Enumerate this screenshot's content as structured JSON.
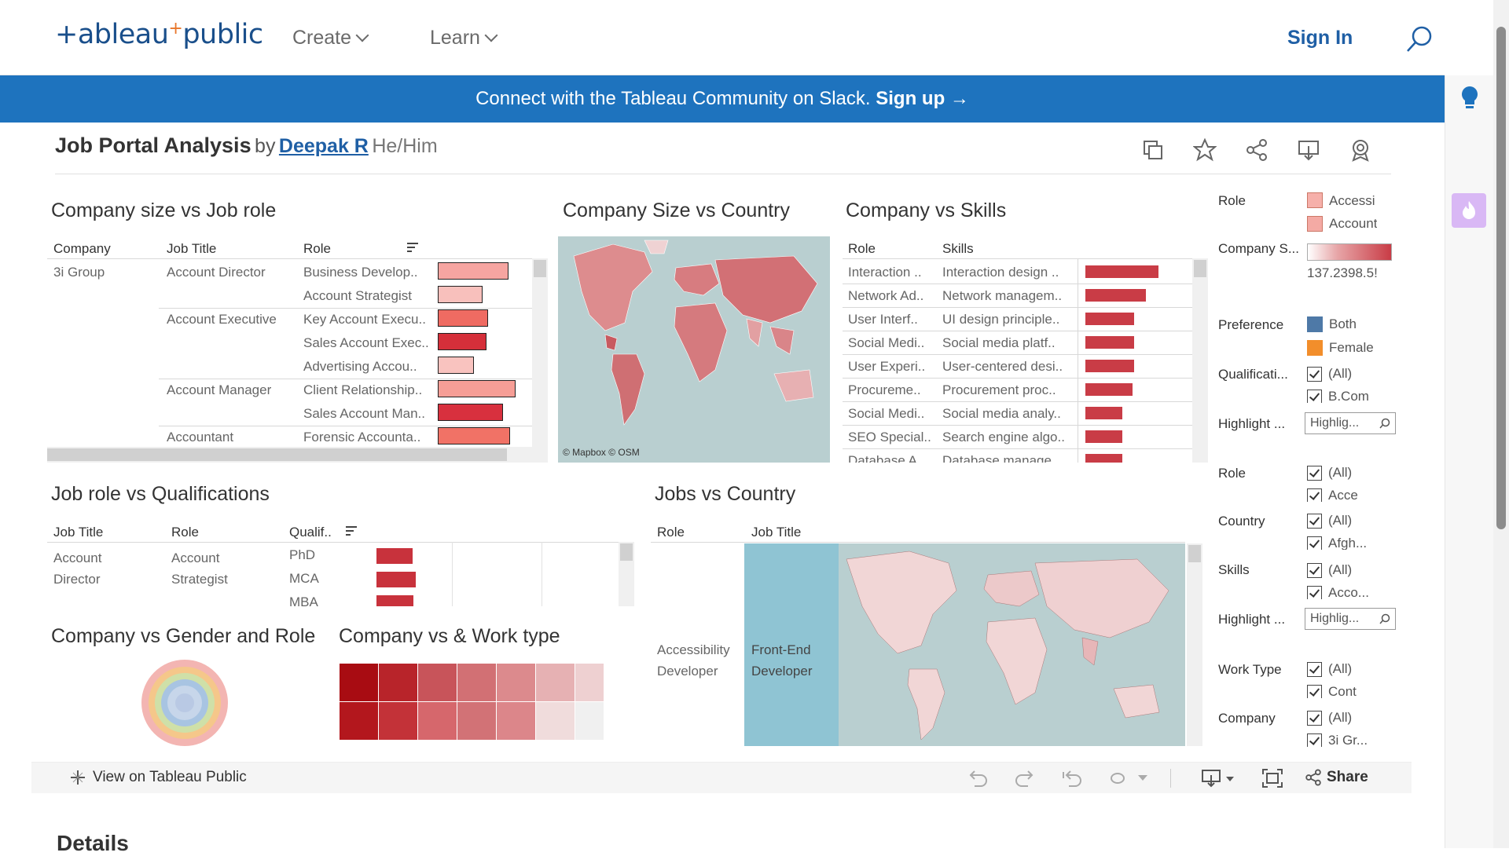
{
  "nav": {
    "logo": "+ableau",
    "logo_plus": "+",
    "logo_public": "public",
    "create": "Create",
    "learn": "Learn",
    "signin": "Sign In"
  },
  "banner": {
    "text": "Connect with the Tableau Community on Slack.",
    "cta": "Sign up →"
  },
  "viz": {
    "title": "Job Portal Analysis",
    "by": "by",
    "author": "Deepak R",
    "pronoun": "He/Him"
  },
  "sheet1": {
    "title": "Company size vs Job role",
    "headers": [
      "Company",
      "Job Title",
      "Role"
    ],
    "company": "3i Group",
    "rows": [
      {
        "job": "Account Director",
        "role": "Business Develop..",
        "bar": 0.82,
        "color": "#f6a5a1"
      },
      {
        "job": "",
        "role": "Account Strategist",
        "bar": 0.52,
        "color": "#f8c0bc"
      },
      {
        "job": "Account Executive",
        "role": "Key Account Execu..",
        "bar": 0.58,
        "color": "#ef6b62"
      },
      {
        "job": "",
        "role": "Sales Account Exec..",
        "bar": 0.56,
        "color": "#d52f3a"
      },
      {
        "job": "",
        "role": "Advertising Accou..",
        "bar": 0.42,
        "color": "#f9c3bf"
      },
      {
        "job": "Account Manager",
        "role": "Client Relationship..",
        "bar": 0.9,
        "color": "#f69e96"
      },
      {
        "job": "",
        "role": "Sales Account Man..",
        "bar": 0.75,
        "color": "#d8303e"
      },
      {
        "job": "Accountant",
        "role": "Forensic Accounta..",
        "bar": 0.84,
        "color": "#f17266"
      }
    ]
  },
  "sheet2": {
    "title": "Company Size vs Country",
    "attrib": "© Mapbox  © OSM"
  },
  "sheet3": {
    "title": "Company vs Skills",
    "headers": [
      "Role",
      "Skills"
    ],
    "rows": [
      {
        "role": "Interaction ..",
        "skill": "Interaction design ..",
        "bar": 0.75
      },
      {
        "role": "Network Ad..",
        "skill": "Network managem..",
        "bar": 0.62
      },
      {
        "role": "User Interf..",
        "skill": "UI design principle..",
        "bar": 0.5
      },
      {
        "role": "Social Medi..",
        "skill": "Social media platf..",
        "bar": 0.5
      },
      {
        "role": "User Experi..",
        "skill": "User-centered desi..",
        "bar": 0.5
      },
      {
        "role": "Procureme..",
        "skill": "Procurement proc..",
        "bar": 0.48
      },
      {
        "role": "Social Medi..",
        "skill": "Social media analy..",
        "bar": 0.38
      },
      {
        "role": "SEO Special..",
        "skill": "Search engine algo..",
        "bar": 0.38
      },
      {
        "role": "Database A..",
        "skill": "Database manage..",
        "bar": 0.38
      }
    ]
  },
  "sheet4": {
    "title": "Job role vs Qualifications",
    "headers": [
      "Job Title",
      "Role",
      "Qualif.."
    ],
    "job": "Account Director",
    "role": "Account Strategist",
    "rows": [
      {
        "q": "PhD",
        "bar": 0.42
      },
      {
        "q": "MCA",
        "bar": 0.45
      },
      {
        "q": "MBA",
        "bar": 0.43
      }
    ]
  },
  "sheet5": {
    "title": "Jobs vs Country",
    "headers": [
      "Role",
      "Job Title"
    ],
    "role": "Accessibility Developer",
    "job": "Front-End Developer"
  },
  "sheet6": {
    "title": "Company vs Gender and Role"
  },
  "sheet7": {
    "title": "Company vs & Work type",
    "cells": [
      "#a80c12",
      "#b8242a",
      "#c8545a",
      "#d27074",
      "#dc8a8d",
      "#e6b1b3",
      "#eed0d1",
      "#b3171d",
      "#c33238",
      "#d6676c",
      "#d27276",
      "#dc868a",
      "#f0dcdc",
      "#f0f0f0"
    ]
  },
  "filters": {
    "role_legend": {
      "label": "Role",
      "items": [
        "Accessi",
        "Account"
      ],
      "colors": [
        "#f6b0aa",
        "#f4aaa4"
      ]
    },
    "size_legend": {
      "label": "Company S...",
      "min": "137.2",
      "max": "198.5",
      "range_text": "137.2398.5!"
    },
    "pref": {
      "label": "Preference",
      "items": [
        "Both",
        "Female"
      ],
      "colors": [
        "#4e79a7",
        "#f28e2b"
      ]
    },
    "qual": {
      "label": "Qualificati...",
      "all": "(All)",
      "first": "B.Com"
    },
    "highlight1": {
      "label": "Highlight ...",
      "placeholder": "Highlig..."
    },
    "role": {
      "label": "Role",
      "all": "(All)",
      "first": "Acce"
    },
    "country": {
      "label": "Country",
      "all": "(All)",
      "first": "Afgh..."
    },
    "skills": {
      "label": "Skills",
      "all": "(All)",
      "first": "Acco..."
    },
    "highlight2": {
      "label": "Highlight ...",
      "placeholder": "Highlig..."
    },
    "worktype": {
      "label": "Work Type",
      "all": "(All)",
      "first": "Cont"
    },
    "company": {
      "label": "Company",
      "all": "(All)",
      "first": "3i Gr..."
    }
  },
  "toolbar": {
    "view": "View on Tableau Public",
    "share": "Share"
  },
  "details": "Details"
}
